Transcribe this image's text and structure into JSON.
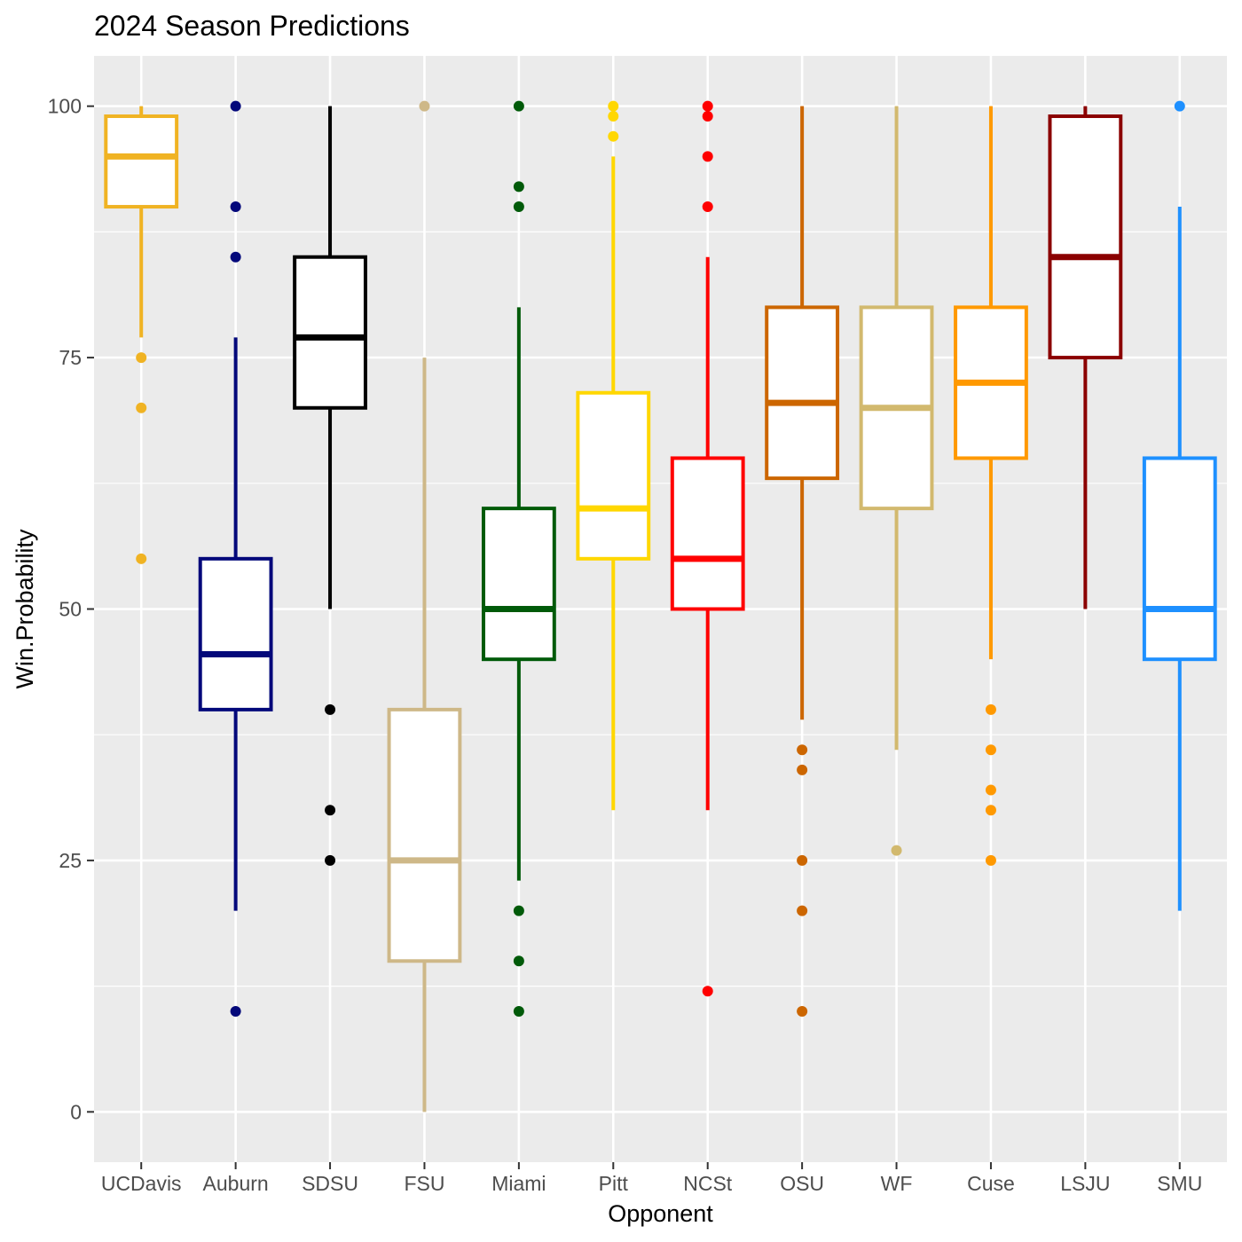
{
  "chart_data": {
    "type": "boxplot",
    "title": "2024 Season Predictions",
    "xlabel": "Opponent",
    "ylabel": "Win.Probability",
    "ylim": [
      -5,
      105
    ],
    "yticks": [
      0,
      25,
      50,
      75,
      100
    ],
    "ytick_labels": [
      "0",
      "25",
      "50",
      "75",
      "100"
    ],
    "grid": true,
    "panel_background": "#ebebeb",
    "grid_color": "#ffffff",
    "categories": [
      "UCDavis",
      "Auburn",
      "SDSU",
      "FSU",
      "Miami",
      "Pitt",
      "NCSt",
      "OSU",
      "WF",
      "Cuse",
      "LSJU",
      "SMU"
    ],
    "series": [
      {
        "name": "UCDavis",
        "color": "#F0B323",
        "q1": 90,
        "median": 95,
        "q3": 99,
        "whisker_low": 77,
        "whisker_high": 100,
        "outliers": [
          75,
          70,
          55
        ]
      },
      {
        "name": "Auburn",
        "color": "#03087A",
        "q1": 40,
        "median": 45.5,
        "q3": 55,
        "whisker_low": 20,
        "whisker_high": 77,
        "outliers": [
          100,
          90,
          85,
          10
        ]
      },
      {
        "name": "SDSU",
        "color": "#000000",
        "q1": 70,
        "median": 77,
        "q3": 85,
        "whisker_low": 50,
        "whisker_high": 100,
        "outliers": [
          40,
          30,
          25
        ]
      },
      {
        "name": "FSU",
        "color": "#CEB888",
        "q1": 15,
        "median": 25,
        "q3": 40,
        "whisker_low": 0,
        "whisker_high": 75,
        "outliers": [
          100
        ]
      },
      {
        "name": "Miami",
        "color": "#005A09",
        "q1": 45,
        "median": 50,
        "q3": 60,
        "whisker_low": 23,
        "whisker_high": 80,
        "outliers": [
          100,
          92,
          90,
          20,
          15,
          10
        ]
      },
      {
        "name": "Pitt",
        "color": "#FFD700",
        "q1": 55,
        "median": 60,
        "q3": 71.5,
        "whisker_low": 30,
        "whisker_high": 95,
        "outliers": [
          100,
          99,
          97
        ]
      },
      {
        "name": "NCSt",
        "color": "#FF0000",
        "q1": 50,
        "median": 55,
        "q3": 65,
        "whisker_low": 30,
        "whisker_high": 85,
        "outliers": [
          100,
          99,
          95,
          90,
          12
        ]
      },
      {
        "name": "OSU",
        "color": "#CC6600",
        "q1": 63,
        "median": 70.5,
        "q3": 80,
        "whisker_low": 39,
        "whisker_high": 100,
        "outliers": [
          36,
          34,
          25,
          20,
          10
        ]
      },
      {
        "name": "WF",
        "color": "#D2B96E",
        "q1": 60,
        "median": 70,
        "q3": 80,
        "whisker_low": 36,
        "whisker_high": 100,
        "outliers": [
          26
        ]
      },
      {
        "name": "Cuse",
        "color": "#FF9900",
        "q1": 65,
        "median": 72.5,
        "q3": 80,
        "whisker_low": 45,
        "whisker_high": 100,
        "outliers": [
          40,
          36,
          32,
          30,
          25
        ]
      },
      {
        "name": "LSJU",
        "color": "#8B0000",
        "q1": 75,
        "median": 85,
        "q3": 99,
        "whisker_low": 50,
        "whisker_high": 100,
        "outliers": []
      },
      {
        "name": "SMU",
        "color": "#1E90FF",
        "q1": 45,
        "median": 50,
        "q3": 65,
        "whisker_low": 20,
        "whisker_high": 90,
        "outliers": [
          100
        ]
      }
    ]
  }
}
